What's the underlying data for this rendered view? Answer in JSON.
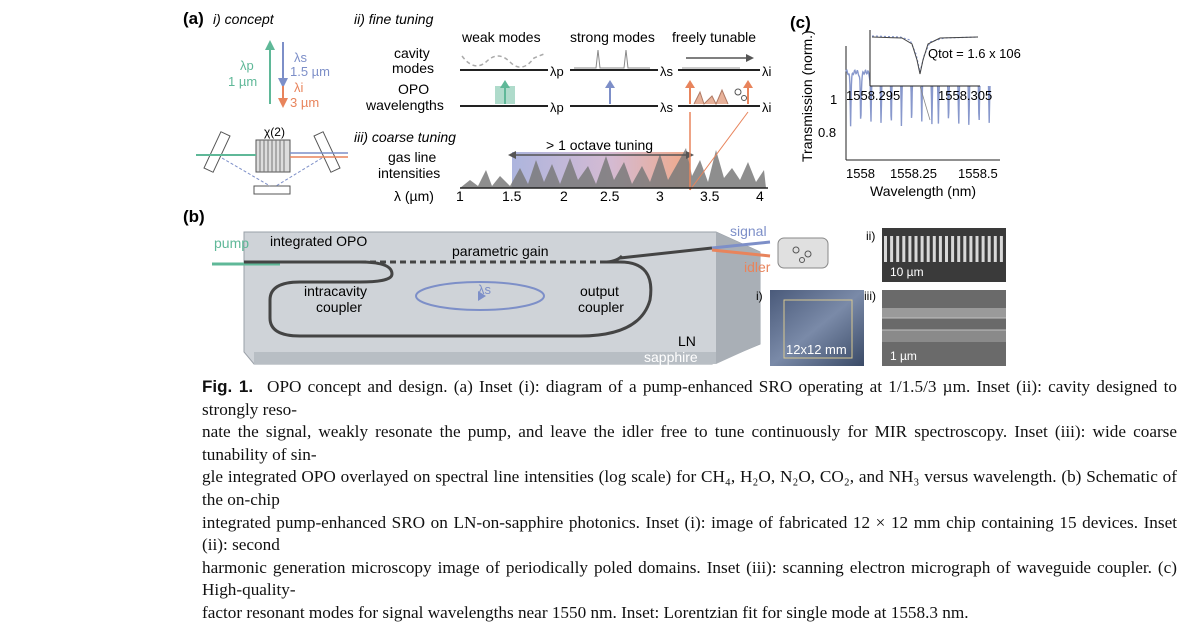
{
  "panel_a": {
    "label": "(a)",
    "concept": {
      "title": "i) concept",
      "pump_symbol": "λp",
      "pump_value": "1 µm",
      "signal_symbol": "λs",
      "signal_value": "1.5 µm",
      "idler_symbol": "λi",
      "idler_value": "3 µm",
      "chi2": "χ(2)"
    },
    "fine_tuning": {
      "title": "ii) fine tuning",
      "columns": [
        "weak modes",
        "strong modes",
        "freely tunable"
      ],
      "row1_label_1": "cavity",
      "row1_label_2": "modes",
      "row2_label_1": "OPO",
      "row2_label_2": "wavelengths",
      "lambda_p": "λp",
      "lambda_s": "λs",
      "lambda_i": "λi"
    },
    "coarse_tuning": {
      "title": "iii) coarse tuning",
      "gas_label_1": "gas line",
      "gas_label_2": "intensities",
      "octave_label": "> 1 octave tuning",
      "axis_label": "λ (µm)",
      "ticks": [
        "1",
        "1.5",
        "2",
        "2.5",
        "3",
        "3.5",
        "4"
      ]
    }
  },
  "panel_b": {
    "label": "(b)",
    "pump": "pump",
    "integrated_opo": "integrated OPO",
    "parametric_gain": "parametric gain",
    "intracavity_1": "intracavity",
    "intracavity_2": "coupler",
    "lambda_s": "λs",
    "output_1": "output",
    "output_2": "coupler",
    "ln": "LN",
    "sapphire": "sapphire",
    "signal": "signal",
    "idler": "idler",
    "inset_i_label": "i)",
    "inset_i_scale": "12x12 mm",
    "inset_ii_label": "ii)",
    "inset_ii_scale": "10 µm",
    "inset_iii_label": "iii)",
    "inset_iii_scale": "1 µm"
  },
  "panel_c": {
    "label": "(c)",
    "ylabel": "Transmission (norm.)",
    "xlabel": "Wavelength (nm)",
    "y_ticks": [
      "1",
      "0.8"
    ],
    "x_ticks": [
      "1558",
      "1558.25",
      "1558.5"
    ],
    "inset_q": "Qtot = 1.6 x 106",
    "inset_x_ticks": [
      "1558.295",
      "1558.305"
    ]
  },
  "chart_data": {
    "type": "line",
    "xlabel": "Wavelength (nm)",
    "ylabel": "Transmission (norm.)",
    "xlim": [
      1558,
      1558.5
    ],
    "ylim": [
      0.74,
      1.06
    ],
    "x_ticks": [
      1558,
      1558.25,
      1558.5
    ],
    "y_ticks": [
      0.8,
      1
    ],
    "series": [
      {
        "baseline": 0.99,
        "resonances_nm": [
          1558.015,
          1558.048,
          1558.081,
          1558.114,
          1558.147,
          1558.18,
          1558.213,
          1558.246,
          1558.279,
          1558.3,
          1558.333,
          1558.366,
          1558.399,
          1558.432,
          1558.465
        ],
        "min_transmission": 0.84
      }
    ],
    "inset": {
      "xlim": [
        1558.29,
        1558.31
      ],
      "x_ticks": [
        1558.295,
        1558.305
      ],
      "resonance_nm": 1558.3,
      "q_tot": 1600000
    }
  },
  "caption": {
    "lead": "Fig. 1.",
    "lines": [
      "OPO concept and design. (a) Inset (i): diagram of a pump-enhanced SRO operating at 1/1.5/3 µm. Inset (ii): cavity designed to strongly reso-",
      "nate the signal, weakly resonate the pump, and leave the idler free to tune continuously for MIR spectroscopy. Inset (iii): wide coarse tunability of sin-",
      "gle integrated OPO overlayed on spectral line intensities (log scale) for CH₄, H₂O, N₂O, CO₂, and NH₃ versus wavelength. (b) Schematic of the on-chip",
      "integrated pump-enhanced SRO on LN-on-sapphire photonics. Inset (i): image of fabricated 12 × 12 mm chip containing 15 devices. Inset (ii): second",
      "harmonic generation microscopy image of periodically poled domains. Inset (iii): scanning electron micrograph of waveguide coupler. (c) High-quality-",
      "factor resonant modes for signal wavelengths near 1550 nm. Inset: Lorentzian fit for single mode at 1558.3 nm."
    ]
  },
  "colors": {
    "pump": "#5fb898",
    "signal": "#7d8fc8",
    "idler": "#e8845c"
  }
}
